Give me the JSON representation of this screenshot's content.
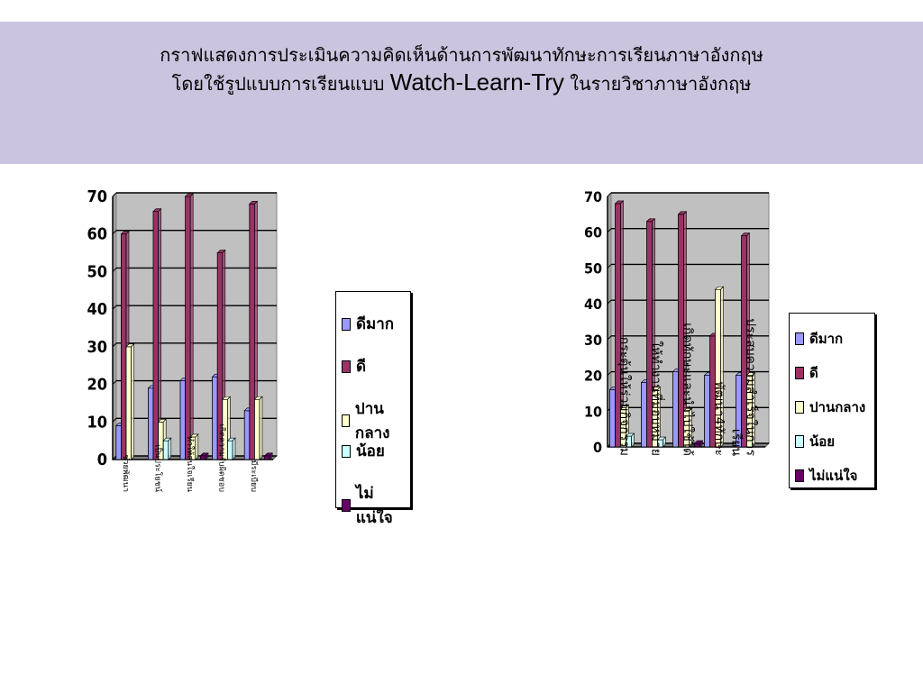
{
  "title": {
    "line1": "กราฟแสดงการประเมินความคิดเห็นด้านการพัฒนาทักษะการเรียนภาษาอังกฤษ",
    "line2_prefix": "โดยใช้รูปแบบการเรียนแบบ ",
    "line2_latin": "Watch-Learn-Try",
    "line2_suffix": " ในรายวิชาภาษาอังกฤษ"
  },
  "colors": {
    "header_bg": "#cbc4df",
    "plot_bg": "#c0c0c0",
    "series": [
      "#9999ff",
      "#993366",
      "#ffffcc",
      "#ccffff",
      "#660066"
    ]
  },
  "legend": [
    "ดีมาก",
    "ดี",
    "ปานกลาง",
    "น้อย",
    "ไม่แน่ใจ"
  ],
  "chart_data": [
    {
      "type": "bar",
      "legend_position": "right",
      "grid": true,
      "ylim": [
        0,
        70
      ],
      "yticks": [
        0,
        10,
        20,
        30,
        40,
        50,
        60,
        70
      ],
      "categories": [
        "ช่วยพัฒนา",
        "เป็นประโยชน์",
        "ทำให้สนใจเรียน",
        "เกิดความรับผิดชอบ",
        "มีระเบียบ"
      ],
      "series": [
        {
          "name": "ดีมาก",
          "values": [
            9,
            19,
            21,
            22,
            13
          ]
        },
        {
          "name": "ดี",
          "values": [
            60,
            66,
            70,
            55,
            68
          ]
        },
        {
          "name": "ปานกลาง",
          "values": [
            30,
            10,
            6,
            16,
            16
          ]
        },
        {
          "name": "น้อย",
          "values": [
            0,
            5,
            0,
            5,
            0
          ]
        },
        {
          "name": "ไม่แน่ใจ",
          "values": [
            0,
            0,
            1,
            0,
            1
          ]
        }
      ]
    },
    {
      "type": "bar",
      "legend_position": "right",
      "grid": true,
      "ylim": [
        0,
        70
      ],
      "yticks": [
        0,
        10,
        20,
        30,
        40,
        50,
        60,
        70
      ],
      "categories": [
        "กระตุ้นให้ร่วมกิจกรรม",
        "ให้ทำงานที่มอบหมาย",
        "เกิดทักษะและนำไปใช้ได้",
        "พัฒนา4ทักษะ",
        "ประสบความสำเร็จในการ เรียน"
      ],
      "series": [
        {
          "name": "ดีมาก",
          "values": [
            16,
            18,
            21,
            20,
            20
          ]
        },
        {
          "name": "ดี",
          "values": [
            68,
            63,
            65,
            31,
            59
          ]
        },
        {
          "name": "ปานกลาง",
          "values": [
            11,
            16,
            10,
            44,
            20
          ]
        },
        {
          "name": "น้อย",
          "values": [
            3,
            2,
            0,
            0,
            0
          ]
        },
        {
          "name": "ไม่แน่ใจ",
          "values": [
            0,
            0,
            1,
            0,
            0
          ]
        }
      ]
    }
  ]
}
